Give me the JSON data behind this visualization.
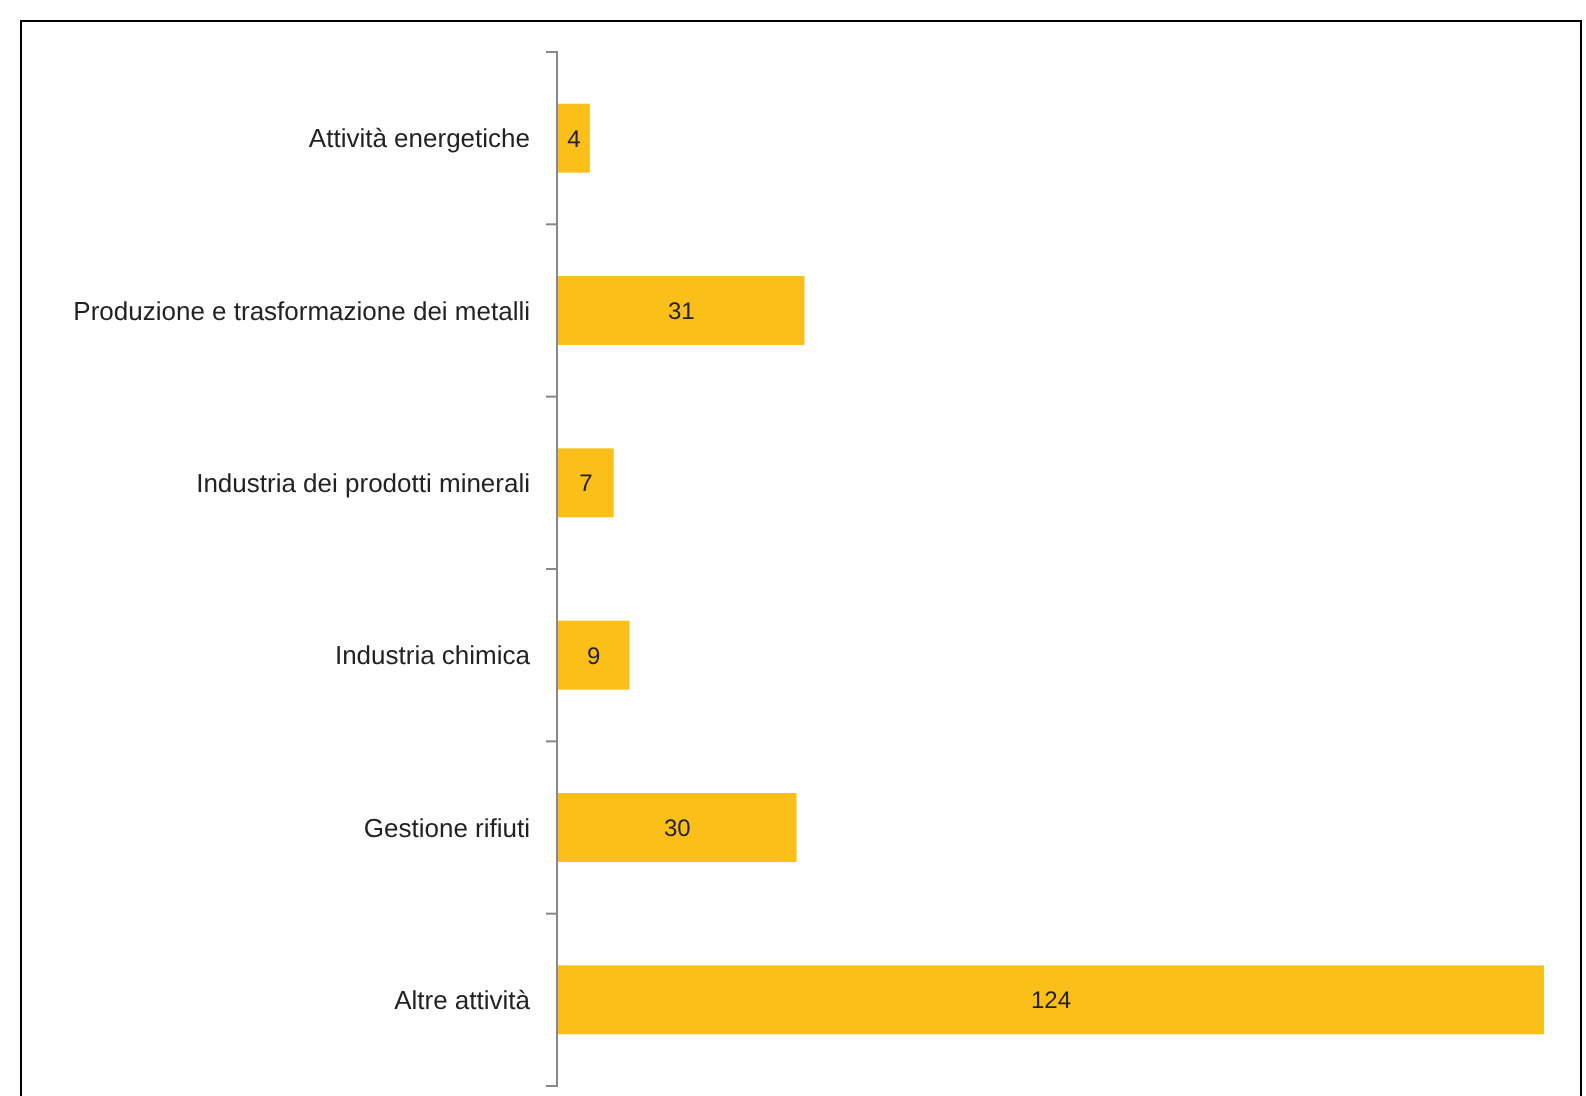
{
  "chart_data": {
    "type": "bar",
    "orientation": "horizontal",
    "categories": [
      "Attività energetiche",
      "Produzione e trasformazione dei metalli",
      "Industria dei prodotti minerali",
      "Industria chimica",
      "Gestione rifiuti",
      "Altre attività"
    ],
    "values": [
      4,
      31,
      7,
      9,
      30,
      124
    ],
    "color": "#fbbf1a",
    "data_labels": true
  }
}
